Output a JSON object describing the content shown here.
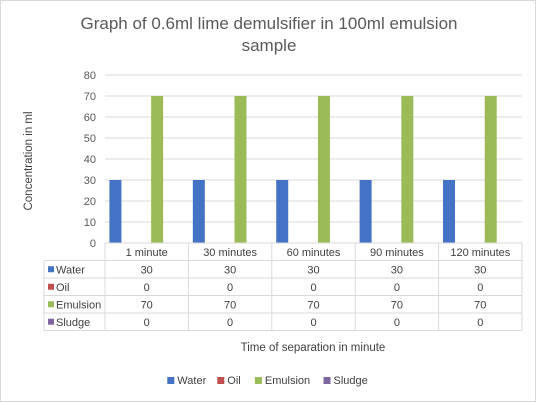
{
  "chart_data": {
    "type": "bar",
    "title_line1": "Graph of 0.6ml lime demulsifier in 100ml emulsion",
    "title_line2": "sample",
    "xlabel": "Time of separation in minute",
    "ylabel": "Concentration in ml",
    "categories": [
      "1 minute",
      "30 minutes",
      "60 minutes",
      "90 minutes",
      "120 minutes"
    ],
    "ylim": [
      0,
      80
    ],
    "yticks": [
      0,
      10,
      20,
      30,
      40,
      50,
      60,
      70,
      80
    ],
    "grid": true,
    "legend_position": "bottom",
    "series": [
      {
        "name": "Water",
        "values": [
          30,
          30,
          30,
          30,
          30
        ],
        "color": "#4472c4",
        "value_labels": [
          "30",
          "30",
          "30",
          "30",
          "30"
        ]
      },
      {
        "name": "Oil",
        "values": [
          0,
          0,
          0,
          0,
          0
        ],
        "color": "#c0504d",
        "value_labels": [
          "0",
          "0",
          "0",
          "0",
          "0"
        ]
      },
      {
        "name": "Emulsion",
        "values": [
          70,
          70,
          70,
          70,
          70
        ],
        "color": "#9bbb59",
        "value_labels": [
          "70",
          "70",
          "70",
          "70",
          "70"
        ]
      },
      {
        "name": "Sludge",
        "values": [
          0,
          0,
          0,
          0,
          0
        ],
        "color": "#8064a2",
        "value_labels": [
          "0",
          "0",
          "0",
          "0",
          "0"
        ]
      }
    ]
  }
}
